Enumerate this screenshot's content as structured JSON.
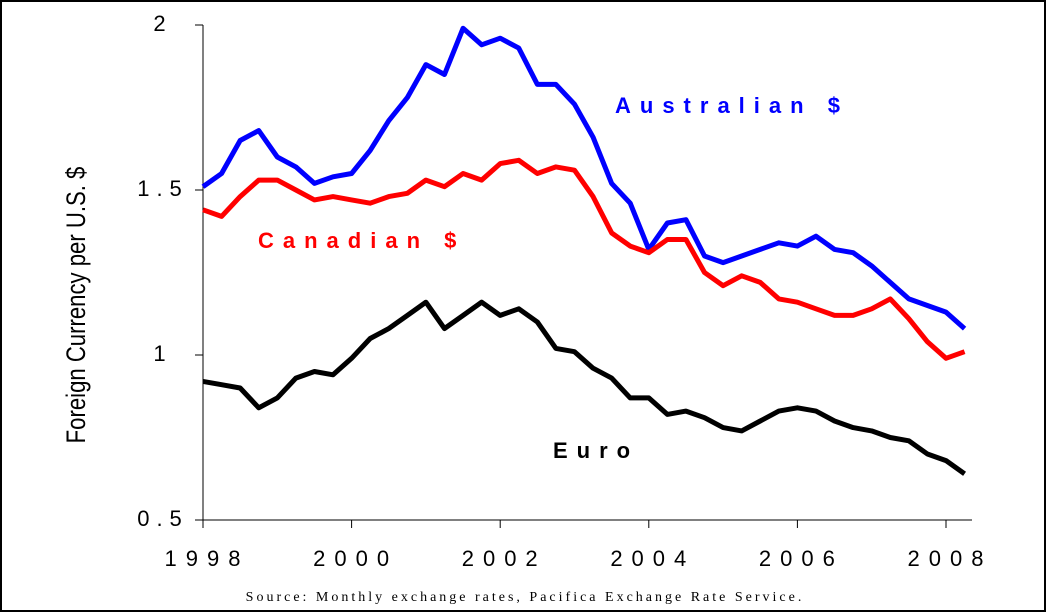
{
  "chart_data": {
    "type": "line",
    "ylabel": "Foreign Currency per U.S. $",
    "source": "Source: Monthly exchange rates, Pacifica Exchange Rate Service.",
    "x": [
      1998,
      1998.25,
      1998.5,
      1998.75,
      1999,
      1999.25,
      1999.5,
      1999.75,
      2000,
      2000.25,
      2000.5,
      2000.75,
      2001,
      2001.25,
      2001.5,
      2001.75,
      2002,
      2002.25,
      2002.5,
      2002.75,
      2003,
      2003.25,
      2003.5,
      2003.75,
      2004,
      2004.25,
      2004.5,
      2004.75,
      2005,
      2005.25,
      2005.5,
      2005.75,
      2006,
      2006.25,
      2006.5,
      2006.75,
      2007,
      2007.25,
      2007.5,
      2007.75,
      2008,
      2008.25
    ],
    "series": [
      {
        "name": "Australian $",
        "color": "#0000ff",
        "values": [
          1.51,
          1.55,
          1.65,
          1.68,
          1.6,
          1.57,
          1.52,
          1.54,
          1.55,
          1.62,
          1.71,
          1.78,
          1.88,
          1.85,
          1.99,
          1.94,
          1.96,
          1.93,
          1.82,
          1.82,
          1.76,
          1.66,
          1.52,
          1.46,
          1.32,
          1.4,
          1.41,
          1.3,
          1.28,
          1.3,
          1.32,
          1.34,
          1.33,
          1.36,
          1.32,
          1.31,
          1.27,
          1.22,
          1.17,
          1.15,
          1.13,
          1.08
        ]
      },
      {
        "name": "Canadian $",
        "color": "#ff0000",
        "values": [
          1.44,
          1.42,
          1.48,
          1.53,
          1.53,
          1.5,
          1.47,
          1.48,
          1.47,
          1.46,
          1.48,
          1.49,
          1.53,
          1.51,
          1.55,
          1.53,
          1.58,
          1.59,
          1.55,
          1.57,
          1.56,
          1.48,
          1.37,
          1.33,
          1.31,
          1.35,
          1.35,
          1.25,
          1.21,
          1.24,
          1.22,
          1.17,
          1.16,
          1.14,
          1.12,
          1.12,
          1.14,
          1.17,
          1.11,
          1.04,
          0.99,
          1.01
        ]
      },
      {
        "name": "Euro",
        "color": "#000000",
        "values": [
          0.92,
          0.91,
          0.9,
          0.84,
          0.87,
          0.93,
          0.95,
          0.94,
          0.99,
          1.05,
          1.08,
          1.12,
          1.16,
          1.08,
          1.12,
          1.16,
          1.12,
          1.14,
          1.1,
          1.02,
          1.01,
          0.96,
          0.93,
          0.87,
          0.87,
          0.82,
          0.83,
          0.81,
          0.78,
          0.77,
          0.8,
          0.83,
          0.84,
          0.83,
          0.8,
          0.78,
          0.77,
          0.75,
          0.74,
          0.7,
          0.68,
          0.64
        ]
      }
    ],
    "xlim": [
      1998,
      2008.35
    ],
    "xticks": [
      1998,
      2000,
      2002,
      2004,
      2006,
      2008
    ],
    "ylim": [
      0.5,
      2
    ],
    "yticks": [
      0.5,
      1,
      1.5,
      2
    ]
  }
}
